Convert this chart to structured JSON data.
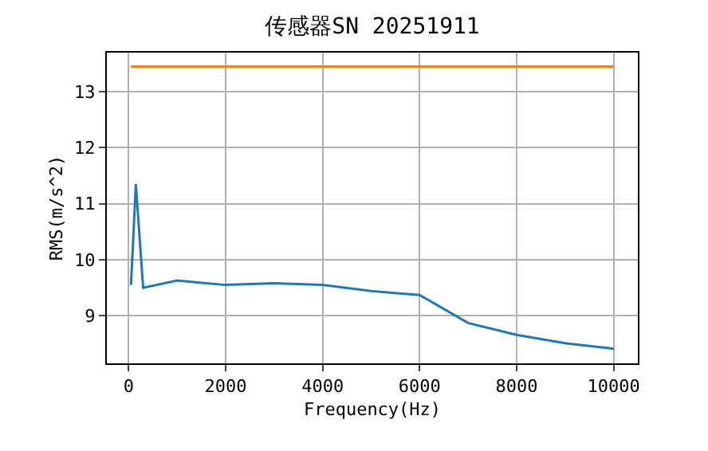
{
  "chart_data": {
    "type": "line",
    "title": "传感器SN 20251911",
    "xlabel": "Frequency(Hz)",
    "ylabel": "RMS(m/s^2)",
    "x": [
      50,
      150,
      300,
      1000,
      2000,
      3000,
      4000,
      5000,
      6000,
      7000,
      8000,
      9000,
      10000
    ],
    "series": [
      {
        "color": "#1f77b4",
        "values": [
          9.55,
          11.35,
          9.5,
          9.63,
          9.55,
          9.58,
          9.55,
          9.44,
          9.37,
          8.87,
          8.66,
          8.51,
          8.41
        ]
      },
      {
        "color": "#ff7f0e",
        "values": [
          13.45,
          13.45,
          13.45,
          13.45,
          13.45,
          13.45,
          13.45,
          13.45,
          13.45,
          13.45,
          13.45,
          13.45,
          13.45
        ]
      }
    ],
    "xlim": [
      -448,
      10498
    ],
    "ylim": [
      8.15,
      13.7
    ],
    "xticks": [
      0,
      2000,
      4000,
      6000,
      8000,
      10000
    ],
    "yticks": [
      9,
      10,
      11,
      12,
      13
    ],
    "grid": true,
    "marker": "none",
    "line_style": "solid"
  }
}
